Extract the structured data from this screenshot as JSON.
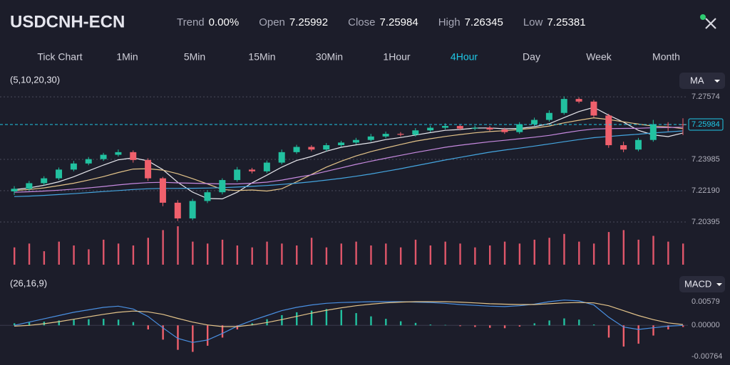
{
  "header": {
    "symbol": "USDCNH-ECN",
    "stats": [
      {
        "label": "Trend",
        "value": "0.00%"
      },
      {
        "label": "Open",
        "value": "7.25992"
      },
      {
        "label": "Close",
        "value": "7.25984"
      },
      {
        "label": "High",
        "value": "7.26345"
      },
      {
        "label": "Low",
        "value": "7.25381"
      }
    ]
  },
  "timeframes": {
    "items": [
      "Tick Chart",
      "1Min",
      "5Min",
      "15Min",
      "30Min",
      "1Hour",
      "4Hour",
      "Day",
      "Week",
      "Month"
    ],
    "active": 6
  },
  "chart": {
    "type": "candlestick",
    "ylim": [
      7.2015,
      7.2823
    ],
    "yticks": [
      7.27574,
      7.23985,
      {
        "value": 7.2219,
        "label": "7.22190"
      },
      7.20395
    ],
    "grid": true,
    "current_price": 7.25984,
    "colors": {
      "up": "#22c1a0",
      "down": "#f0606c",
      "price": "#1fc8e6"
    },
    "open": [
      7.2215,
      7.223,
      7.2262,
      7.229,
      7.234,
      7.2375,
      7.24,
      7.2425,
      7.244,
      7.2395,
      7.229,
      7.215,
      7.206,
      7.216,
      7.221,
      7.228,
      7.234,
      7.233,
      7.238,
      7.244,
      7.247,
      7.2455,
      7.248,
      7.2495,
      7.251,
      7.253,
      7.2545,
      7.254,
      7.2565,
      7.258,
      7.259,
      7.2575,
      7.258,
      7.257,
      7.2555,
      7.26,
      7.2625,
      7.2665,
      7.2745,
      7.273,
      7.265,
      7.248,
      7.2455,
      7.251,
      7.26,
      7.25992
    ],
    "high": [
      7.2245,
      7.2275,
      7.2302,
      7.2352,
      7.239,
      7.2412,
      7.2436,
      7.2455,
      7.245,
      7.2405,
      7.2298,
      7.2165,
      7.2172,
      7.2222,
      7.229,
      7.2355,
      7.235,
      7.2392,
      7.2455,
      7.2482,
      7.248,
      7.2492,
      7.2505,
      7.2522,
      7.2545,
      7.2558,
      7.2555,
      7.2578,
      7.2592,
      7.2605,
      7.26,
      7.2592,
      7.259,
      7.258,
      7.2612,
      7.2638,
      7.268,
      7.276,
      7.2755,
      7.274,
      7.266,
      7.25,
      7.2522,
      7.2625,
      7.2612,
      7.26345
    ],
    "low": [
      7.2195,
      7.2218,
      7.225,
      7.228,
      7.233,
      7.2365,
      7.239,
      7.2415,
      7.238,
      7.2275,
      7.213,
      7.2045,
      7.205,
      7.2148,
      7.2198,
      7.227,
      7.2318,
      7.232,
      7.237,
      7.243,
      7.2445,
      7.2445,
      7.247,
      7.2485,
      7.25,
      7.252,
      7.253,
      7.253,
      7.2555,
      7.257,
      7.2565,
      7.2565,
      7.256,
      7.2545,
      7.2545,
      7.259,
      7.2615,
      7.2655,
      7.272,
      7.264,
      7.2465,
      7.244,
      7.2445,
      7.25,
      7.256,
      7.25381
    ],
    "close": [
      7.223,
      7.2262,
      7.229,
      7.234,
      7.2375,
      7.24,
      7.2425,
      7.244,
      7.2395,
      7.229,
      7.215,
      7.206,
      7.216,
      7.221,
      7.228,
      7.234,
      7.233,
      7.238,
      7.244,
      7.247,
      7.2455,
      7.248,
      7.2495,
      7.251,
      7.253,
      7.2545,
      7.254,
      7.2565,
      7.258,
      7.259,
      7.2575,
      7.258,
      7.257,
      7.2555,
      7.26,
      7.2625,
      7.2665,
      7.2745,
      7.273,
      7.265,
      7.248,
      7.2455,
      7.251,
      7.26,
      7.25992,
      7.25984
    ],
    "ma": {
      "params": "(5,10,20,30)",
      "label": "MA",
      "series": [
        {
          "color": "#e8e8ee",
          "values": [
            7.2225,
            7.2235,
            7.225,
            7.227,
            7.2299,
            7.2333,
            7.2366,
            7.2396,
            7.2407,
            7.239,
            7.234,
            7.2267,
            7.2211,
            7.2174,
            7.2172,
            7.221,
            7.2264,
            7.2308,
            7.2354,
            7.2392,
            7.2415,
            7.2445,
            7.2468,
            7.2482,
            7.2494,
            7.2512,
            7.2524,
            7.2538,
            7.2552,
            7.2565,
            7.257,
            7.2578,
            7.2579,
            7.2574,
            7.2576,
            7.2586,
            7.2603,
            7.2638,
            7.2673,
            7.2697,
            7.2652,
            7.2612,
            7.2565,
            7.2539,
            7.2529,
            7.255
          ]
        },
        {
          "color": "#e4c48a",
          "values": [
            7.222,
            7.2226,
            7.2235,
            7.2248,
            7.2262,
            7.228,
            7.23,
            7.2323,
            7.2343,
            7.2345,
            7.2337,
            7.2316,
            7.2288,
            7.2258,
            7.2226,
            7.222,
            7.2223,
            7.2217,
            7.223,
            7.227,
            7.2312,
            7.2354,
            7.2388,
            7.2418,
            7.2443,
            7.2464,
            7.2484,
            7.2503,
            7.2517,
            7.253,
            7.2541,
            7.2551,
            7.2558,
            7.2563,
            7.257,
            7.2578,
            7.259,
            7.2608,
            7.2623,
            7.2637,
            7.2627,
            7.2614,
            7.2601,
            7.2589,
            7.2585,
            7.2575
          ]
        },
        {
          "color": "#c78ae0",
          "values": [
            7.221,
            7.2213,
            7.2217,
            7.2222,
            7.2228,
            7.2235,
            7.2243,
            7.2252,
            7.226,
            7.2265,
            7.2267,
            7.2264,
            7.2262,
            7.226,
            7.2258,
            7.2258,
            7.2262,
            7.2268,
            7.228,
            7.2295,
            7.231,
            7.233,
            7.235,
            7.237,
            7.2388,
            7.2405,
            7.2422,
            7.2438,
            7.2453,
            7.2468,
            7.248,
            7.249,
            7.25,
            7.2508,
            7.2517,
            7.2526,
            7.2536,
            7.255,
            7.2563,
            7.2573,
            7.2575,
            7.2576,
            7.2577,
            7.258,
            7.2582,
            7.2583
          ]
        },
        {
          "color": "#45a6e0",
          "values": [
            7.2185,
            7.2188,
            7.2192,
            7.2197,
            7.2202,
            7.2208,
            7.2214,
            7.222,
            7.2226,
            7.223,
            7.2232,
            7.2232,
            7.2233,
            7.2234,
            7.2236,
            7.224,
            7.2244,
            7.2249,
            7.2255,
            7.2262,
            7.227,
            7.228,
            7.229,
            7.2302,
            7.2315,
            7.233,
            7.2345,
            7.2362,
            7.2378,
            7.2395,
            7.241,
            7.2425,
            7.244,
            7.2452,
            7.2463,
            7.2475,
            7.2487,
            7.25,
            7.2512,
            7.2523,
            7.253,
            7.2537,
            7.2543,
            7.255,
            7.2556,
            7.2562
          ]
        }
      ]
    },
    "volume": {
      "color": "#e0566a",
      "ylim": [
        0,
        100
      ],
      "values": [
        45,
        55,
        35,
        60,
        50,
        40,
        65,
        55,
        50,
        70,
        90,
        100,
        60,
        55,
        65,
        50,
        45,
        60,
        55,
        50,
        70,
        45,
        55,
        60,
        50,
        55,
        45,
        65,
        50,
        60,
        55,
        45,
        50,
        60,
        55,
        65,
        70,
        80,
        60,
        55,
        85,
        90,
        65,
        75,
        60,
        55
      ]
    },
    "macd": {
      "params": "(26,16,9)",
      "label": "MACD",
      "ylim": [
        -0.0085,
        0.0065
      ],
      "yticks": [
        0.00579,
        {
          "value": 0,
          "label": "0.00000"
        },
        -0.00764
      ],
      "hist": [
        0.0005,
        0.0007,
        0.0009,
        0.0012,
        0.0014,
        0.0015,
        0.0016,
        0.0014,
        0.0008,
        -0.001,
        -0.0035,
        -0.006,
        -0.0065,
        -0.005,
        -0.003,
        -0.001,
        0.0005,
        0.0015,
        0.0025,
        0.0032,
        0.0036,
        0.004,
        0.0038,
        0.003,
        0.0022,
        0.0016,
        0.001,
        0.0006,
        0.0002,
        0.0001,
        -0.0002,
        -0.0004,
        -0.0006,
        -0.0007,
        -0.0003,
        0.0005,
        0.0012,
        0.0017,
        0.0014,
        0.0002,
        -0.003,
        -0.0052,
        -0.0045,
        -0.0025,
        -0.001,
        -0.0004
      ],
      "dif": {
        "color": "#4a90e2",
        "values": [
          0.0,
          0.0008,
          0.0016,
          0.0024,
          0.0032,
          0.0038,
          0.0044,
          0.0047,
          0.004,
          0.0022,
          -0.0006,
          -0.0032,
          -0.0042,
          -0.0036,
          -0.002,
          -0.0002,
          0.0012,
          0.0024,
          0.0036,
          0.0044,
          0.005,
          0.0054,
          0.0056,
          0.0057,
          0.0058,
          0.0058,
          0.0058,
          0.0057,
          0.0056,
          0.0054,
          0.0051,
          0.0049,
          0.0047,
          0.0046,
          0.0048,
          0.0052,
          0.0058,
          0.0062,
          0.006,
          0.005,
          0.002,
          -0.0004,
          -0.001,
          -0.0006,
          -0.0002,
          0.0
        ]
      },
      "dea": {
        "color": "#e4c48a",
        "values": [
          -0.0002,
          0.0,
          0.0004,
          0.0009,
          0.0015,
          0.0021,
          0.0027,
          0.0032,
          0.0035,
          0.0033,
          0.0027,
          0.0017,
          0.0008,
          0.0001,
          -0.0003,
          -0.0003,
          0.0001,
          0.0007,
          0.0014,
          0.0022,
          0.003,
          0.0037,
          0.0043,
          0.0048,
          0.0052,
          0.0055,
          0.0057,
          0.0058,
          0.0058,
          0.0058,
          0.0057,
          0.0055,
          0.0053,
          0.0052,
          0.0051,
          0.0051,
          0.0053,
          0.0055,
          0.0056,
          0.0055,
          0.0048,
          0.0036,
          0.0024,
          0.0014,
          0.0006,
          0.0002
        ]
      }
    }
  }
}
